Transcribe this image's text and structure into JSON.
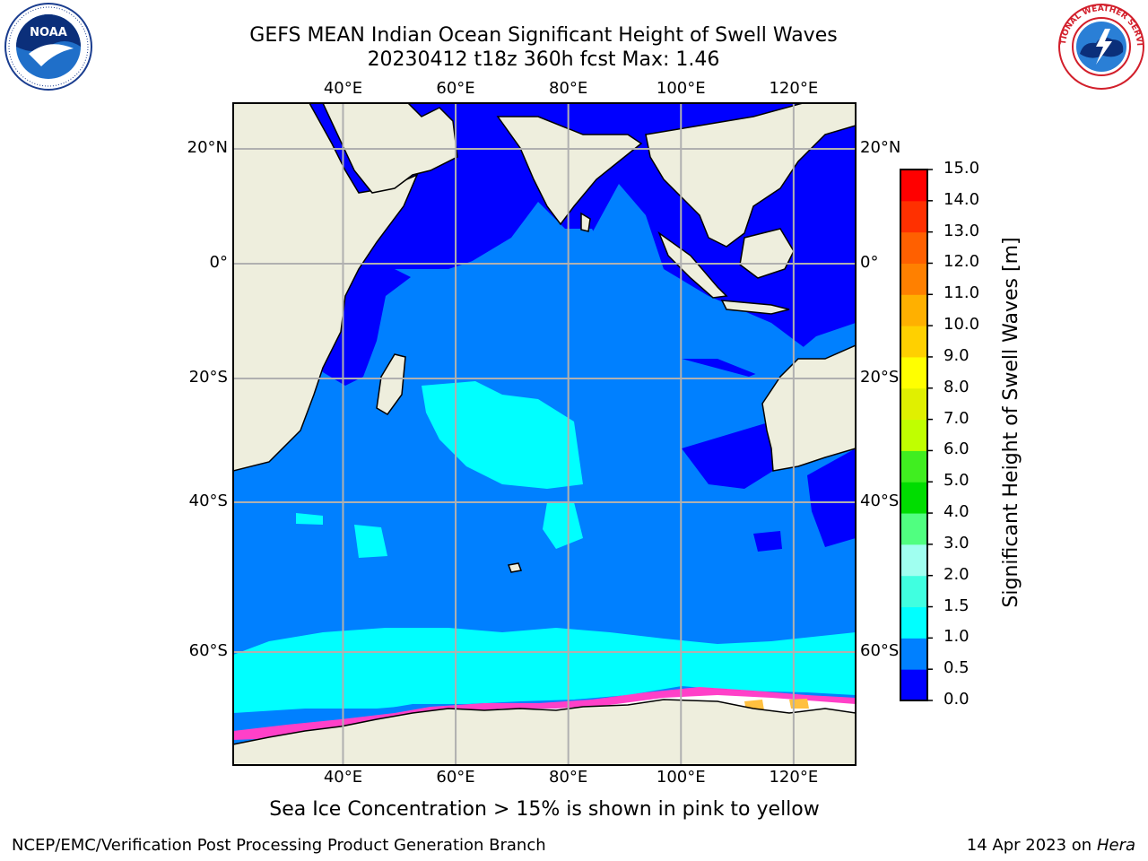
{
  "title": {
    "line1": "GEFS MEAN Indian Ocean Significant Height of Swell Waves",
    "line2": "20230412 t18z 360h fcst   Max: 1.46"
  },
  "map": {
    "lon_ticks": [
      "40°E",
      "60°E",
      "80°E",
      "100°E",
      "120°E"
    ],
    "lon_values": [
      40,
      60,
      80,
      100,
      120
    ],
    "lat_ticks_left": [
      "20°N",
      "0°",
      "20°S",
      "40°S",
      "60°S"
    ],
    "lat_ticks_right": [
      "20°N",
      "0°",
      "20°S",
      "40°S",
      "60°S"
    ],
    "lat_values": [
      20,
      0,
      -20,
      -40,
      -60
    ],
    "grid": true,
    "land_color": "#eeeedd",
    "ocean_base_color": "#0080ff"
  },
  "colorbar": {
    "label": "Significant Height of Swell Waves [m]",
    "ticks": [
      "0.0",
      "0.5",
      "1.0",
      "1.5",
      "2.0",
      "3.0",
      "4.0",
      "5.0",
      "6.0",
      "7.0",
      "8.0",
      "9.0",
      "10.0",
      "11.0",
      "12.0",
      "13.0",
      "14.0",
      "15.0"
    ],
    "colors": [
      "#0000ff",
      "#0080ff",
      "#00ffff",
      "#40ffe0",
      "#a0fff0",
      "#50ff80",
      "#00dd00",
      "#40ee20",
      "#c0ff00",
      "#e0f000",
      "#ffff00",
      "#ffd000",
      "#ffb000",
      "#ff8000",
      "#ff6000",
      "#ff3000",
      "#ff0000"
    ]
  },
  "ice_note": "Sea Ice Concentration > 15% is shown in pink to yellow",
  "footer": {
    "credit": "NCEP/EMC/Verification Post Processing Product Generation Branch",
    "date": "14 Apr 2023 on ",
    "host": "Hera"
  },
  "logos": {
    "left": "noaa-logo",
    "right": "nws-logo",
    "right_text": "NATIONAL WEATHER SERVICE"
  }
}
